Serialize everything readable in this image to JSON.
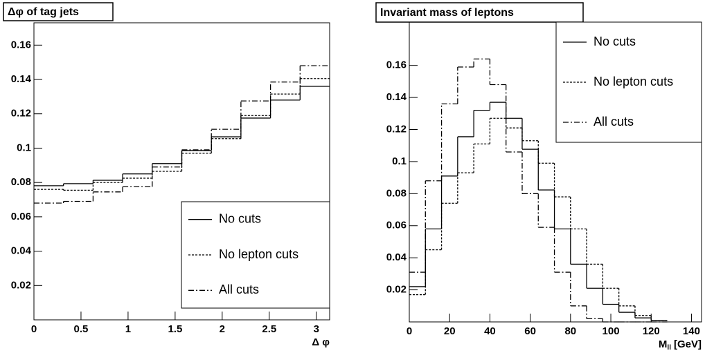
{
  "chart_data": [
    {
      "type": "histogram",
      "title": "Δφ of tag jets",
      "x_label": "Δ φ",
      "bins": [
        0,
        0.31416,
        0.62832,
        0.94248,
        1.25664,
        1.5708,
        1.88496,
        2.19911,
        2.51327,
        2.82743,
        3.14159
      ],
      "xlim": [
        0,
        3.14159
      ],
      "xticks": [
        0,
        0.5,
        1,
        1.5,
        2,
        2.5,
        3
      ],
      "ylim": [
        0,
        0.173
      ],
      "yticks": [
        0.02,
        0.04,
        0.06,
        0.08,
        0.1,
        0.12,
        0.14,
        0.16
      ],
      "legend": "lower right",
      "series": [
        {
          "name": "No cuts",
          "color": "#000000",
          "dash": "solid",
          "values": [
            0.0781,
            0.0793,
            0.0813,
            0.085,
            0.091,
            0.0986,
            0.1066,
            0.1175,
            0.128,
            0.136
          ]
        },
        {
          "name": "No lepton cuts",
          "color": "#000000",
          "dash": "dotted",
          "values": [
            0.076,
            0.0755,
            0.08,
            0.0825,
            0.0865,
            0.097,
            0.1055,
            0.119,
            0.1315,
            0.1405
          ]
        },
        {
          "name": "All cuts",
          "color": "#000000",
          "dash": "dashdot",
          "values": [
            0.068,
            0.069,
            0.0745,
            0.0775,
            0.089,
            0.099,
            0.111,
            0.1275,
            0.1385,
            0.148
          ]
        }
      ]
    },
    {
      "type": "histogram",
      "title": "Invariant mass of leptons",
      "x_label_parts": [
        "M",
        "ll",
        "[GeV]"
      ],
      "bins": [
        0,
        8,
        16,
        24,
        32,
        40,
        48,
        56,
        64,
        72,
        80,
        88,
        96,
        104,
        112,
        120,
        128
      ],
      "xlim": [
        0,
        145
      ],
      "xticks": [
        0,
        20,
        40,
        60,
        80,
        100,
        120,
        140
      ],
      "ylim": [
        0,
        0.187
      ],
      "yticks": [
        0.02,
        0.04,
        0.06,
        0.08,
        0.1,
        0.12,
        0.14,
        0.16
      ],
      "legend": "upper right",
      "series": [
        {
          "name": "No cuts",
          "color": "#000000",
          "dash": "solid",
          "values": [
            0.022,
            0.058,
            0.091,
            0.1155,
            0.132,
            0.137,
            0.127,
            0.1077,
            0.0823,
            0.058,
            0.036,
            0.021,
            0.011,
            0.006,
            0.0025,
            0.001
          ]
        },
        {
          "name": "No lepton cuts",
          "color": "#000000",
          "dash": "dotted",
          "values": [
            0.017,
            0.045,
            0.074,
            0.093,
            0.111,
            0.127,
            0.121,
            0.113,
            0.099,
            0.078,
            0.058,
            0.036,
            0.021,
            0.01,
            0.004,
            0.001
          ]
        },
        {
          "name": "All cuts",
          "color": "#000000",
          "dash": "dashdot",
          "values": [
            0.031,
            0.088,
            0.136,
            0.159,
            0.164,
            0.148,
            0.106,
            0.08,
            0.059,
            0.031,
            0.01,
            0.002,
            0,
            0,
            0,
            0
          ]
        }
      ]
    }
  ]
}
